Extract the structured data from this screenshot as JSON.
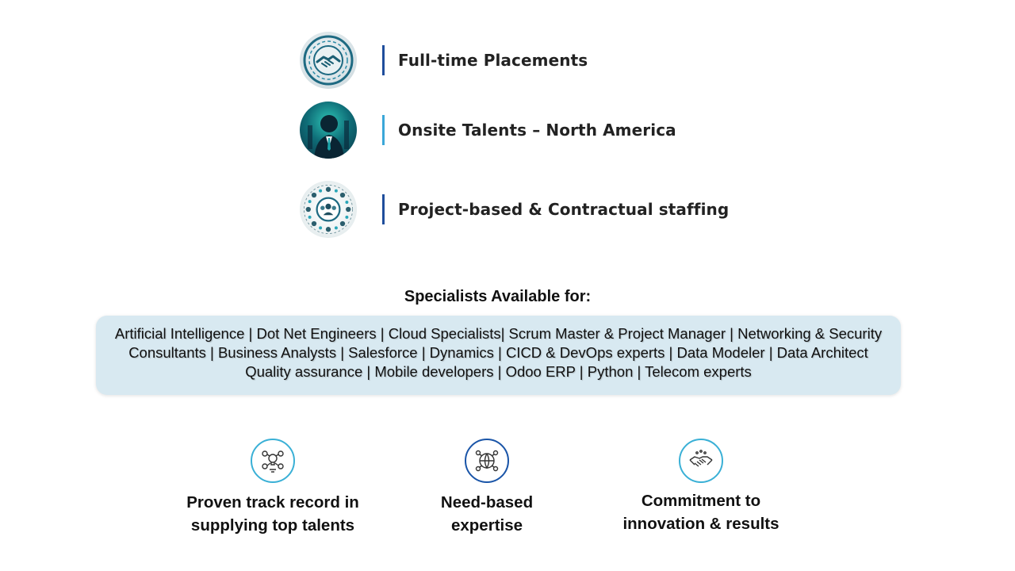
{
  "services": [
    {
      "label": "Full-time Placements",
      "icon": "handshake-icon",
      "bar_color": "#1f4e9c"
    },
    {
      "label": "Onsite Talents – North America",
      "icon": "businessman-icon",
      "bar_color": "#3aa7d8"
    },
    {
      "label": "Project-based & Contractual staffing",
      "icon": "team-network-icon",
      "bar_color": "#1f4e9c"
    }
  ],
  "specialists": {
    "heading": "Specialists Available for:",
    "list": "Artificial Intelligence | Dot Net Engineers | Cloud Specialists| Scrum Master & Project Manager | Networking & Security Consultants | Business Analysts | Salesforce | Dynamics | CICD & DevOps experts | Data Modeler | Data Architect Quality assurance | Mobile developers | Odoo ERP | Python | Telecom experts"
  },
  "features": [
    {
      "line1": "Proven track record in",
      "line2": "supplying top talents",
      "icon": "ideas-network-icon"
    },
    {
      "line1": "Need-based",
      "line2": "expertise",
      "icon": "globe-network-icon"
    },
    {
      "line1": "Commitment to",
      "line2": "innovation & results",
      "icon": "handshake-icon"
    }
  ],
  "colors": {
    "accent_dark_blue": "#1f4e9c",
    "accent_light_blue": "#3ab0d6",
    "box_background": "#d8e9f1"
  }
}
